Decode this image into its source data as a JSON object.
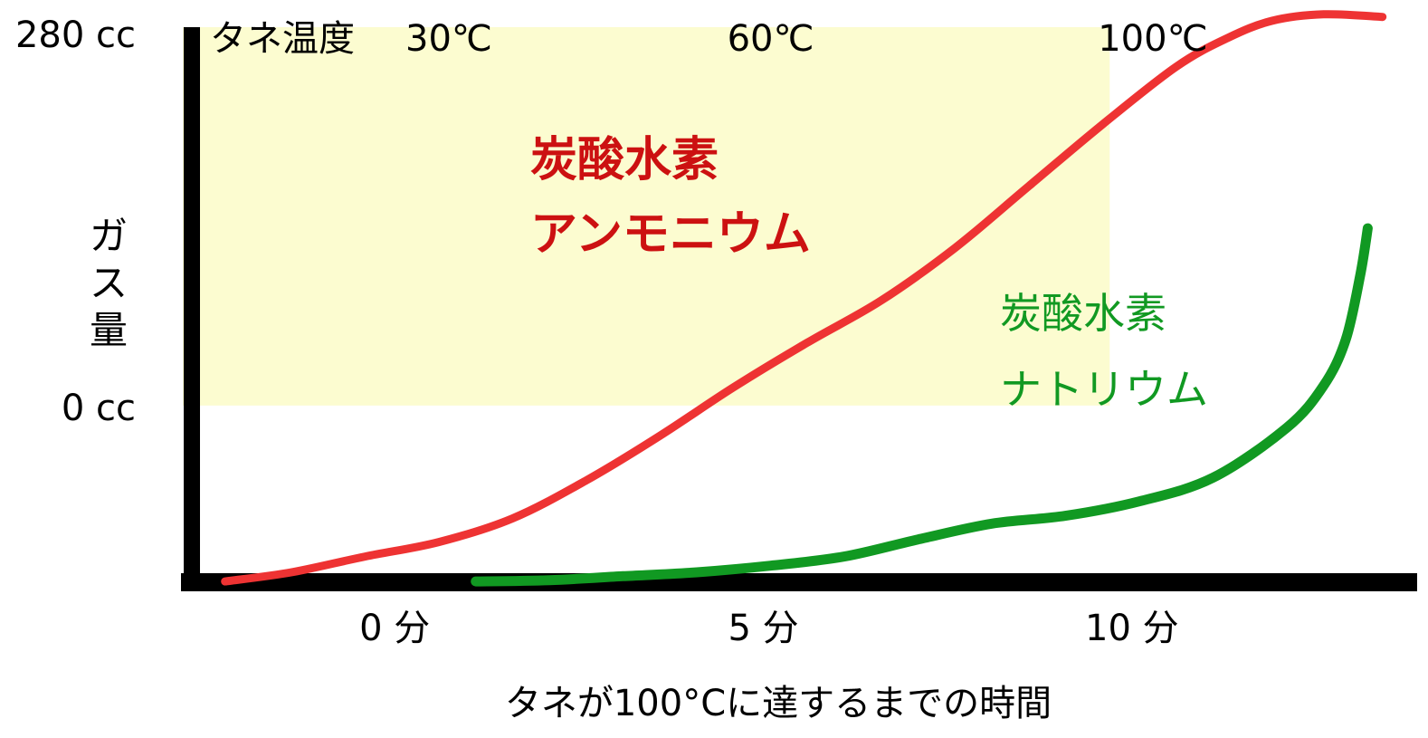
{
  "chart_data": {
    "type": "line",
    "title": "",
    "xlabel": "タネが100°Cに達するまでの時間",
    "ylabel": "ガス量",
    "x_ticks": [
      {
        "value": 0,
        "label": "0 分"
      },
      {
        "value": 5,
        "label": "5 分"
      },
      {
        "value": 10,
        "label": "10 分"
      }
    ],
    "y_ticks": [
      {
        "value": 0,
        "label": "0 cc"
      },
      {
        "value": 280,
        "label": "280 cc"
      }
    ],
    "xlim": [
      -2.85,
      13.77
    ],
    "ylim": [
      -134.6,
      288.2
    ],
    "temperature_annotation": {
      "prefix": "タネ温度",
      "marks": [
        {
          "value": 0,
          "label": "30℃"
        },
        {
          "value": 5,
          "label": "60℃"
        },
        {
          "value": 10,
          "label": "100℃"
        }
      ]
    },
    "shaded_region": {
      "x": [
        -1.5,
        9.6
      ],
      "y": [
        0,
        288.2
      ],
      "color": "#fcfcd0"
    },
    "grid": false,
    "series": [
      {
        "name": "炭酸水素アンモニウム",
        "label_lines": [
          "炭酸水素",
          "アンモニウム"
        ],
        "color": "#ee3333",
        "label_color": "#cc1111",
        "label_bold": true,
        "x": [
          -2.4,
          -1.5,
          -0.5,
          0.5,
          1.5,
          2.5,
          3.5,
          4.5,
          5.5,
          6.5,
          7.5,
          8.5,
          9.5,
          10.5,
          11.2,
          11.8,
          12.5,
          13.3
        ],
        "y": [
          -134,
          -127,
          -115,
          -104,
          -86,
          -57,
          -23,
          14,
          48,
          80,
          120,
          167,
          214,
          258,
          280,
          293,
          298,
          296
        ]
      },
      {
        "name": "炭酸水素ナトリウム",
        "label_lines": [
          "炭酸水素",
          "ナトリウム"
        ],
        "color": "#119922",
        "label_color": "#119922",
        "label_bold": false,
        "x": [
          1.0,
          2.0,
          3.0,
          4.0,
          5.0,
          6.0,
          7.0,
          8.0,
          9.0,
          10.0,
          11.0,
          12.0,
          12.5,
          12.8,
          13.0,
          13.1
        ],
        "y": [
          -134,
          -133,
          -130,
          -127,
          -122,
          -115,
          -102,
          -90,
          -84,
          -73,
          -55,
          -17,
          15,
          50,
          100,
          135
        ]
      }
    ]
  }
}
